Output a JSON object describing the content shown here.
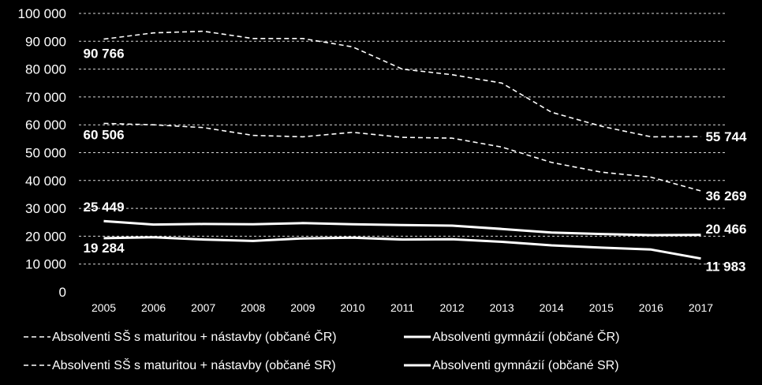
{
  "chart_data": {
    "type": "line",
    "x": [
      "2005",
      "2006",
      "2007",
      "2008",
      "2009",
      "2010",
      "2011",
      "2012",
      "2013",
      "2014",
      "2015",
      "2016",
      "2017"
    ],
    "yticks": [
      "0",
      "10 000",
      "20 000",
      "30 000",
      "40 000",
      "50 000",
      "60 000",
      "70 000",
      "80 000",
      "90 000",
      "100 000"
    ],
    "ylim": [
      0,
      100000
    ],
    "grid": true,
    "legend_position": "bottom",
    "series": [
      {
        "name": "Absolventi SŠ s maturitou + nástavby (občané ČR)",
        "style": "dashed",
        "color": "#ffffff",
        "values": [
          90766,
          93000,
          93600,
          91000,
          91000,
          88000,
          80000,
          78000,
          75000,
          64500,
          59500,
          55700,
          55744
        ],
        "labels": [
          {
            "index": 0,
            "text": "90 766"
          },
          {
            "index": 12,
            "text": "55 744"
          }
        ]
      },
      {
        "name": "Absolventi SŠ s maturitou + nástavby (občané SR)",
        "style": "dashed",
        "color": "#ffffff",
        "values": [
          60506,
          60000,
          59000,
          56200,
          55700,
          57300,
          55500,
          55200,
          52000,
          46500,
          43000,
          41200,
          36269
        ],
        "labels": [
          {
            "index": 0,
            "text": "60 506"
          },
          {
            "index": 12,
            "text": "36 269"
          }
        ]
      },
      {
        "name": "Absolventi gymnázií (občané ČR)",
        "style": "solid",
        "color": "#ffffff",
        "values": [
          25449,
          24200,
          24400,
          24300,
          24700,
          24300,
          24000,
          23800,
          22600,
          21300,
          20800,
          20400,
          20466
        ],
        "labels": [
          {
            "index": 0,
            "text": "25 449"
          },
          {
            "index": 12,
            "text": "20 466"
          }
        ]
      },
      {
        "name": "Absolventi gymnázií (občané SR)",
        "style": "solid",
        "color": "#ffffff",
        "values": [
          19284,
          19600,
          18800,
          18300,
          19200,
          19500,
          18800,
          18900,
          18000,
          16700,
          15900,
          15200,
          11983
        ],
        "labels": [
          {
            "index": 0,
            "text": "19 284"
          },
          {
            "index": 12,
            "text": "11 983"
          }
        ]
      }
    ],
    "legend": [
      {
        "text": "Absolventi SŠ s maturitou + nástavby (občané ČR)",
        "style": "dashed"
      },
      {
        "text": "Absolventi gymnázií (občané ČR)",
        "style": "solid"
      },
      {
        "text": "Absolventi SŠ s maturitou + nástavby (občané SR)",
        "style": "dashed"
      },
      {
        "text": "Absolventi gymnázií (občané SR)",
        "style": "solid"
      }
    ]
  }
}
